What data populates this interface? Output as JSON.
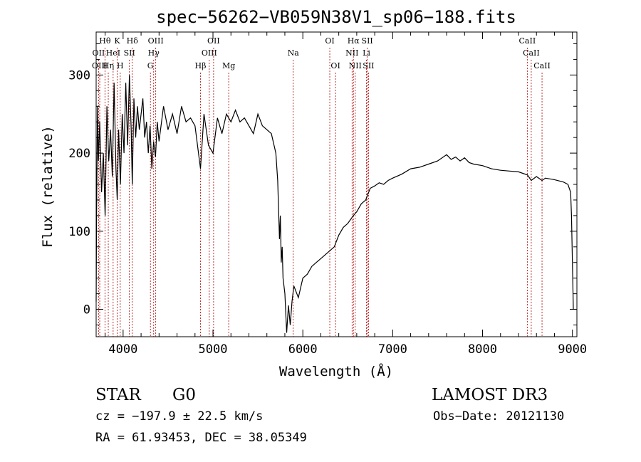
{
  "chart_data": {
    "type": "line",
    "title": "spec−56262−VB059N38V1_sp06−188.fits",
    "xlabel": "Wavelength (Å)",
    "ylabel": "Flux (relative)",
    "xlim": [
      3700,
      9050
    ],
    "ylim": [
      -35,
      355
    ],
    "xticks": [
      4000,
      5000,
      6000,
      7000,
      8000,
      9000
    ],
    "yticks": [
      0,
      100,
      200,
      300
    ],
    "grid": false,
    "series": [
      {
        "x": [
          3700,
          3705,
          3715,
          3725,
          3740,
          3760,
          3780,
          3800,
          3820,
          3840,
          3860,
          3880,
          3900,
          3920,
          3935,
          3950,
          3970,
          3990,
          4010,
          4030,
          4050,
          4070,
          4090,
          4102,
          4120,
          4140,
          4160,
          4180,
          4200,
          4220,
          4240,
          4260,
          4280,
          4300,
          4320,
          4340,
          4360,
          4380,
          4400,
          4450,
          4500,
          4550,
          4600,
          4650,
          4700,
          4750,
          4800,
          4861,
          4900,
          4950,
          5000,
          5050,
          5100,
          5150,
          5200,
          5250,
          5300,
          5350,
          5400,
          5450,
          5500,
          5550,
          5600,
          5650,
          5700,
          5720,
          5740,
          5750,
          5760,
          5770,
          5780,
          5800,
          5820,
          5840,
          5860,
          5880,
          5900,
          5950,
          6000,
          6050,
          6100,
          6150,
          6200,
          6250,
          6300,
          6350,
          6400,
          6450,
          6500,
          6562,
          6600,
          6650,
          6700,
          6750,
          6800,
          6850,
          6900,
          6950,
          7000,
          7100,
          7200,
          7300,
          7400,
          7500,
          7600,
          7650,
          7700,
          7750,
          7800,
          7850,
          7900,
          8000,
          8100,
          8200,
          8300,
          8400,
          8500,
          8542,
          8600,
          8662,
          8700,
          8800,
          8900,
          8950,
          8980,
          8990,
          9000,
          9010
        ],
        "y": [
          10,
          120,
          260,
          190,
          240,
          150,
          200,
          120,
          260,
          190,
          230,
          170,
          290,
          180,
          140,
          230,
          160,
          250,
          200,
          290,
          210,
          300,
          230,
          160,
          270,
          220,
          260,
          230,
          250,
          270,
          220,
          240,
          200,
          235,
          180,
          215,
          195,
          240,
          215,
          260,
          230,
          250,
          225,
          260,
          240,
          245,
          235,
          180,
          250,
          210,
          200,
          245,
          225,
          250,
          240,
          255,
          240,
          245,
          235,
          225,
          250,
          235,
          230,
          225,
          200,
          165,
          90,
          120,
          60,
          80,
          40,
          20,
          -30,
          5,
          -20,
          10,
          30,
          15,
          40,
          45,
          55,
          60,
          65,
          70,
          75,
          80,
          95,
          105,
          110,
          120,
          125,
          135,
          140,
          155,
          158,
          162,
          160,
          165,
          168,
          173,
          180,
          182,
          186,
          190,
          198,
          192,
          195,
          190,
          194,
          188,
          186,
          184,
          180,
          178,
          177,
          176,
          172,
          165,
          170,
          165,
          168,
          166,
          163,
          160,
          150,
          120,
          60,
          0
        ]
      }
    ],
    "lines_top": [
      {
        "label": "Hθ",
        "x": 3798
      },
      {
        "label": "K",
        "x": 3934
      },
      {
        "label": "Hδ",
        "x": 4102
      },
      {
        "label": "OIII",
        "x": 4363
      },
      {
        "label": "OII",
        "x": 5007
      },
      {
        "label": "OI",
        "x": 6300
      },
      {
        "label": "Hα",
        "x": 6563
      },
      {
        "label": "SII",
        "x": 6717
      },
      {
        "label": "CaII",
        "x": 8498
      }
    ],
    "lines_mid": [
      {
        "label": "OII",
        "x": 3727
      },
      {
        "label": "HeI",
        "x": 3889
      },
      {
        "label": "SII",
        "x": 4070
      },
      {
        "label": "Hγ",
        "x": 4340
      },
      {
        "label": "OIII",
        "x": 4959
      },
      {
        "label": "Na",
        "x": 5893
      },
      {
        "label": "NII",
        "x": 6548
      },
      {
        "label": "Li",
        "x": 6708
      },
      {
        "label": "CaII",
        "x": 8542
      }
    ],
    "lines_low": [
      {
        "label": "OIII",
        "x": 3740
      },
      {
        "label": "Hη",
        "x": 3835
      },
      {
        "label": "H",
        "x": 3968
      },
      {
        "label": "G",
        "x": 4304
      },
      {
        "label": "Hβ",
        "x": 4861
      },
      {
        "label": "Mg",
        "x": 5175
      },
      {
        "label": "OI",
        "x": 6364
      },
      {
        "label": "NII",
        "x": 6583
      },
      {
        "label": "SII",
        "x": 6731
      },
      {
        "label": "CaII",
        "x": 8662
      }
    ]
  },
  "info": {
    "object_class": "STAR",
    "subclass": "G0",
    "survey": "LAMOST DR3",
    "cz": "cz = −197.9 ± 22.5 km/s",
    "obs_date": "Obs−Date: 20121130",
    "coords": "RA =  61.93453, DEC =  38.05349"
  }
}
